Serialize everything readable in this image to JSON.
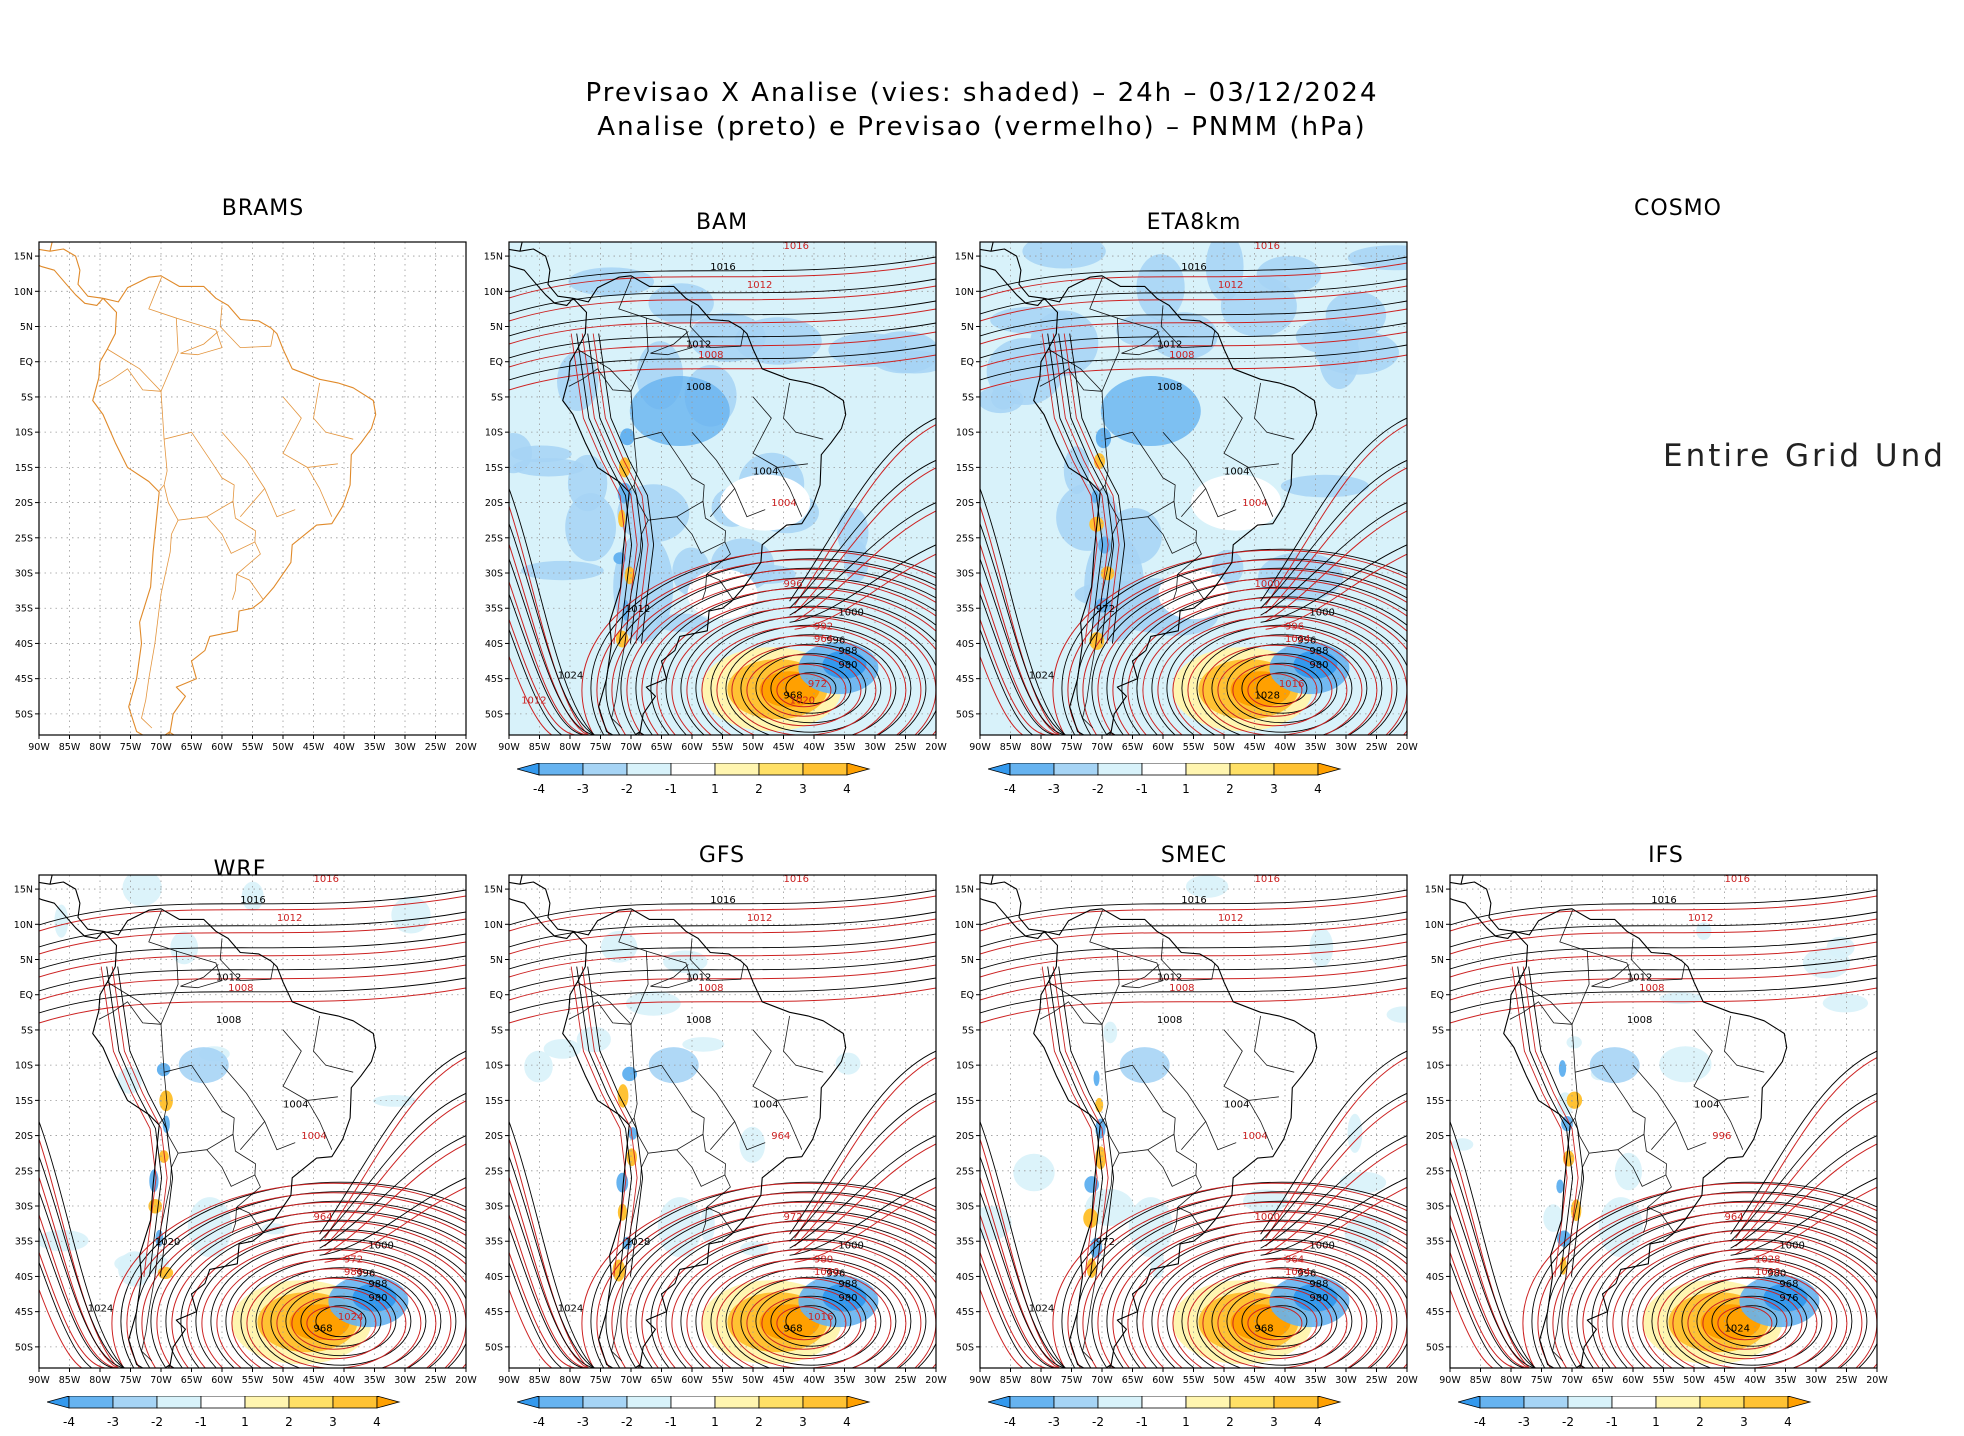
{
  "header": {
    "line1": "Previsao X Analise (vies: shaded) – 24h – 03/12/2024",
    "line2": "Analise (preto) e Previsao (vermelho) – PNMM (hPa)"
  },
  "axes": {
    "lat_labels": [
      "15N",
      "10N",
      "5N",
      "EQ",
      "5S",
      "10S",
      "15S",
      "20S",
      "25S",
      "30S",
      "35S",
      "40S",
      "45S",
      "50S"
    ],
    "lon_labels": [
      "90W",
      "85W",
      "80W",
      "75W",
      "70W",
      "65W",
      "60W",
      "55W",
      "50W",
      "45W",
      "40W",
      "35W",
      "30W",
      "25W",
      "20W"
    ]
  },
  "colorbar": {
    "labels": [
      "-4",
      "-3",
      "-2",
      "-1",
      "1",
      "2",
      "3",
      "4"
    ],
    "colors": [
      "#3399ee",
      "#66b3f0",
      "#a6d4f5",
      "#d8f2fa",
      "#ffffff",
      "#fff5b0",
      "#ffe066",
      "#ffc233",
      "#ffa000"
    ]
  },
  "colors": {
    "analysis": "#000000",
    "forecast": "#cc2222",
    "map_outline": "#e08a2a",
    "grid": "#999999"
  },
  "panels": [
    {
      "id": "brams",
      "title": "BRAMS",
      "type": "map_only"
    },
    {
      "id": "bam",
      "title": "BAM",
      "type": "bias",
      "shade": "strong",
      "labels": {
        "black": [
          "1016",
          "1012",
          "1008",
          "1004",
          "1000",
          "996",
          "988",
          "980",
          "968",
          "1024",
          "1012"
        ],
        "red": [
          "1016",
          "1012",
          "1008",
          "1004",
          "996",
          "992",
          "964",
          "972",
          "1020",
          "1012"
        ]
      }
    },
    {
      "id": "eta8km",
      "title": "ETA8km",
      "type": "bias",
      "shade": "strong",
      "labels": {
        "black": [
          "1016",
          "1012",
          "1008",
          "1004",
          "1000",
          "996",
          "988",
          "980",
          "1028",
          "1024",
          "972"
        ],
        "red": [
          "1016",
          "1012",
          "1008",
          "1004",
          "1000",
          "996",
          "1024",
          "1016"
        ]
      }
    },
    {
      "id": "cosmo",
      "title": "COSMO",
      "type": "empty",
      "message": "Entire Grid Und"
    },
    {
      "id": "wrf",
      "title": "WRF",
      "type": "bias",
      "shade": "light",
      "labels": {
        "black": [
          "1016",
          "1012",
          "1008",
          "1004",
          "1000",
          "996",
          "988",
          "980",
          "968",
          "1024",
          "1020"
        ],
        "red": [
          "1016",
          "1012",
          "1008",
          "1004",
          "964",
          "972",
          "980",
          "1024"
        ]
      }
    },
    {
      "id": "gfs",
      "title": "GFS",
      "type": "bias",
      "shade": "light",
      "labels": {
        "black": [
          "1016",
          "1012",
          "1008",
          "1004",
          "1000",
          "996",
          "988",
          "980",
          "968",
          "1024",
          "1028"
        ],
        "red": [
          "1016",
          "1012",
          "1008",
          "964",
          "972",
          "980",
          "1020",
          "1016"
        ]
      }
    },
    {
      "id": "smec",
      "title": "SMEC",
      "type": "bias",
      "shade": "light",
      "labels": {
        "black": [
          "1016",
          "1012",
          "1008",
          "1004",
          "1000",
          "996",
          "988",
          "980",
          "968",
          "1024",
          "972"
        ],
        "red": [
          "1016",
          "1012",
          "1008",
          "1004",
          "1000",
          "964",
          "1024"
        ]
      }
    },
    {
      "id": "ifs",
      "title": "IFS",
      "type": "bias",
      "shade": "light",
      "labels": {
        "black": [
          "1016",
          "1012",
          "1008",
          "1004",
          "1000",
          "980",
          "968",
          "976",
          "1024"
        ],
        "red": [
          "1016",
          "1012",
          "1008",
          "996",
          "964",
          "1028",
          "1020"
        ]
      }
    }
  ]
}
